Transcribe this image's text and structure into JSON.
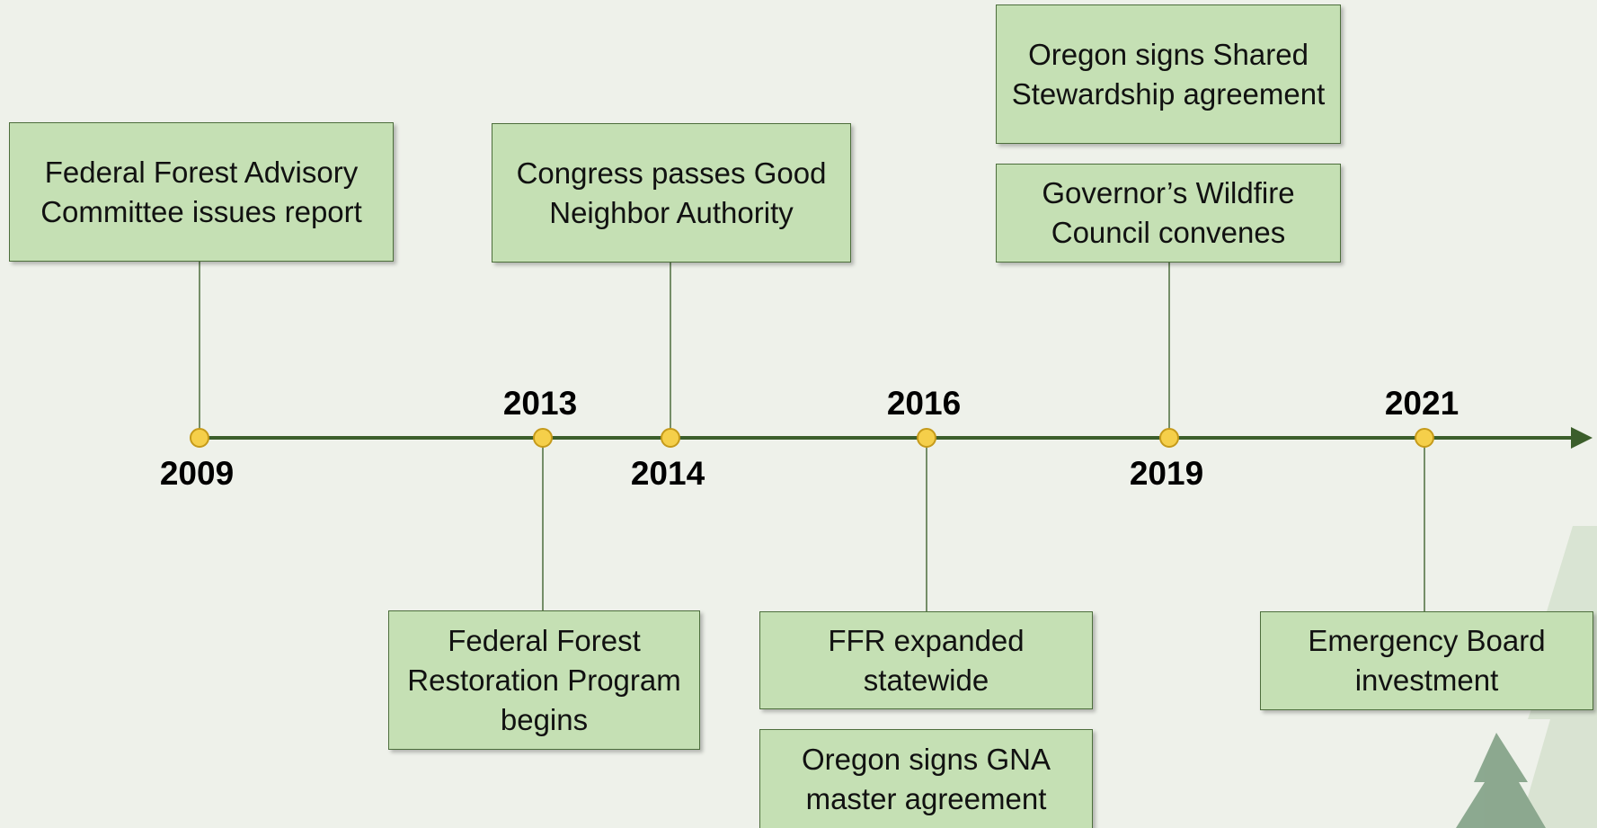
{
  "timeline": {
    "events": [
      {
        "year": "2009",
        "boxes": [
          "Federal Forest Advisory Committee issues report"
        ]
      },
      {
        "year": "2013",
        "boxes": [
          "Federal Forest Restoration Program begins"
        ]
      },
      {
        "year": "2014",
        "boxes": [
          "Congress passes Good Neighbor Authority"
        ]
      },
      {
        "year": "2016",
        "boxes": [
          "FFR expanded statewide",
          "Oregon signs GNA master agreement"
        ]
      },
      {
        "year": "2019",
        "boxes": [
          "Oregon signs Shared Stewardship agreement",
          "Governor’s Wildfire Council convenes"
        ]
      },
      {
        "year": "2021",
        "boxes": [
          "Emergency Board investment"
        ]
      }
    ]
  }
}
